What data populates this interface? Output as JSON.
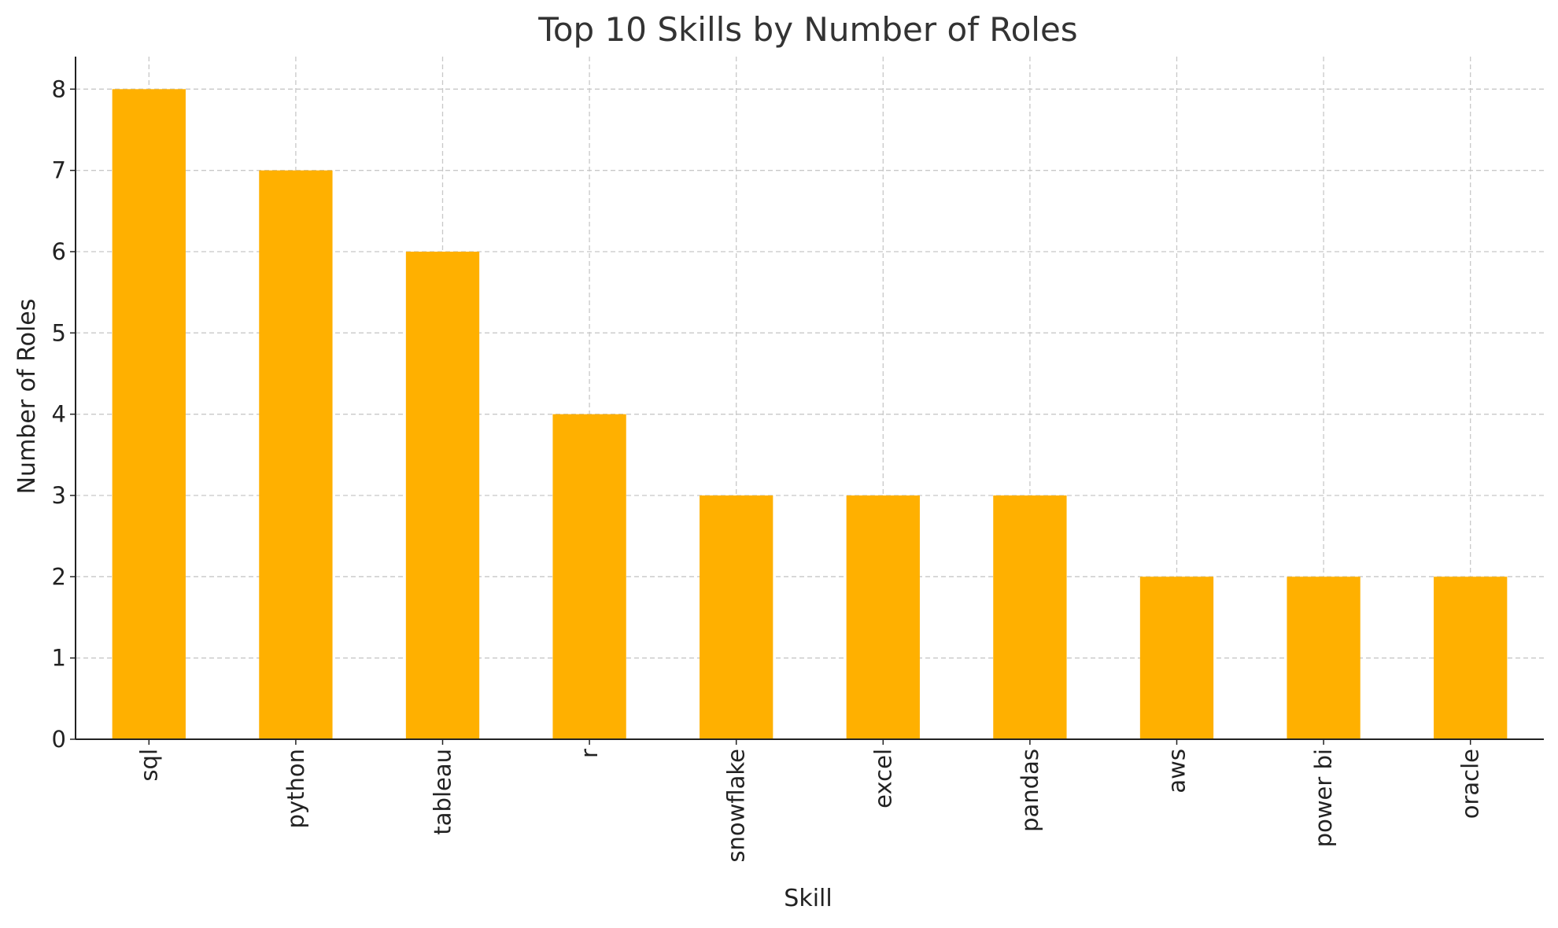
{
  "chart_data": {
    "type": "bar",
    "title": "Top 10 Skills by Number of Roles",
    "xlabel": "Skill",
    "ylabel": "Number of Roles",
    "categories": [
      "sql",
      "python",
      "tableau",
      "r",
      "snowflake",
      "excel",
      "pandas",
      "aws",
      "power bi",
      "oracle"
    ],
    "values": [
      8,
      7,
      6,
      4,
      3,
      3,
      3,
      2,
      2,
      2
    ],
    "ylim": [
      0,
      8.4
    ],
    "yticks": [
      "0",
      "1",
      "2",
      "3",
      "4",
      "5",
      "6",
      "7",
      "8"
    ],
    "grid": true,
    "bar_color": "#FFB000"
  }
}
